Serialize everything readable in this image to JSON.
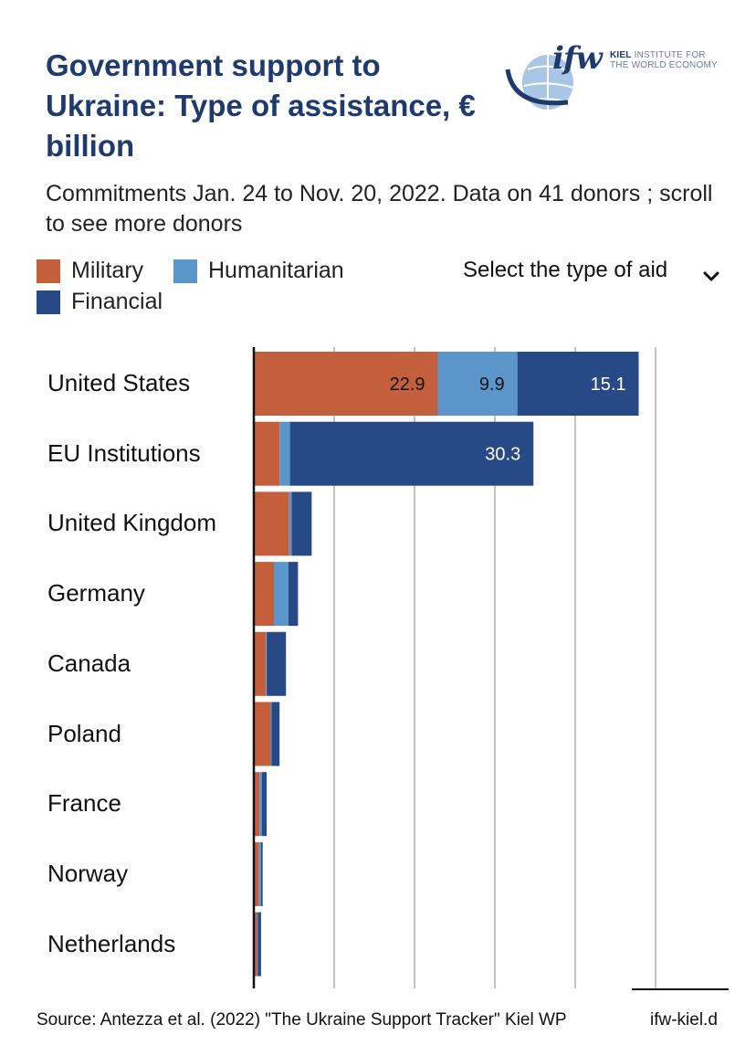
{
  "header": {
    "title": "Government support to Ukraine: Type of assistance, € billion",
    "subtitle": "Commitments Jan. 24 to Nov. 20, 2022. Data on 41 donors ; scroll to see more donors"
  },
  "logo": {
    "mark": "ifw",
    "org_bold": "KIEL",
    "org_line1": "INSTITUTE FOR",
    "org_line2": "THE WORLD ECONOMY"
  },
  "legend": {
    "items": [
      {
        "label": "Military",
        "color": "#c45f3c"
      },
      {
        "label": "Humanitarian",
        "color": "#5b96cb"
      },
      {
        "label": "Financial",
        "color": "#274a86"
      }
    ]
  },
  "filter": {
    "label": "Select the type of aid",
    "icon": "chevron-down-icon"
  },
  "chart_data": {
    "type": "bar",
    "orientation": "horizontal",
    "stacked": true,
    "title": "Government support to Ukraine: Type of assistance, € billion",
    "categories": [
      "United States",
      "EU Institutions",
      "United Kingdom",
      "Germany",
      "Canada",
      "Poland",
      "France",
      "Norway",
      "Netherlands"
    ],
    "series": [
      {
        "name": "Military",
        "color": "#c45f3c",
        "values": [
          22.9,
          3.2,
          4.4,
          2.5,
          1.5,
          2.1,
          0.7,
          0.6,
          0.4
        ]
      },
      {
        "name": "Humanitarian",
        "color": "#5b96cb",
        "values": [
          9.9,
          1.3,
          0.3,
          1.8,
          0.1,
          0.1,
          0.3,
          0.3,
          0.1
        ]
      },
      {
        "name": "Financial",
        "color": "#274a86",
        "values": [
          15.1,
          30.3,
          2.5,
          1.2,
          2.4,
          1.0,
          0.6,
          0.2,
          0.4
        ]
      }
    ],
    "data_labels": [
      {
        "category": "United States",
        "series": "Military",
        "text": "22.9"
      },
      {
        "category": "United States",
        "series": "Humanitarian",
        "text": "9.9"
      },
      {
        "category": "United States",
        "series": "Financial",
        "text": "15.1"
      },
      {
        "category": "EU Institutions",
        "series": "Financial",
        "text": "30.3"
      }
    ],
    "xlim": [
      0,
      50
    ],
    "gridlines": [
      10,
      20,
      30,
      40,
      50
    ],
    "grid": true,
    "xlabel": "",
    "ylabel": ""
  },
  "footer": {
    "source": "Source: Antezza et al. (2022) \"The Ukraine Support Tracker\" Kiel WP",
    "link": "ifw-kiel.d"
  }
}
